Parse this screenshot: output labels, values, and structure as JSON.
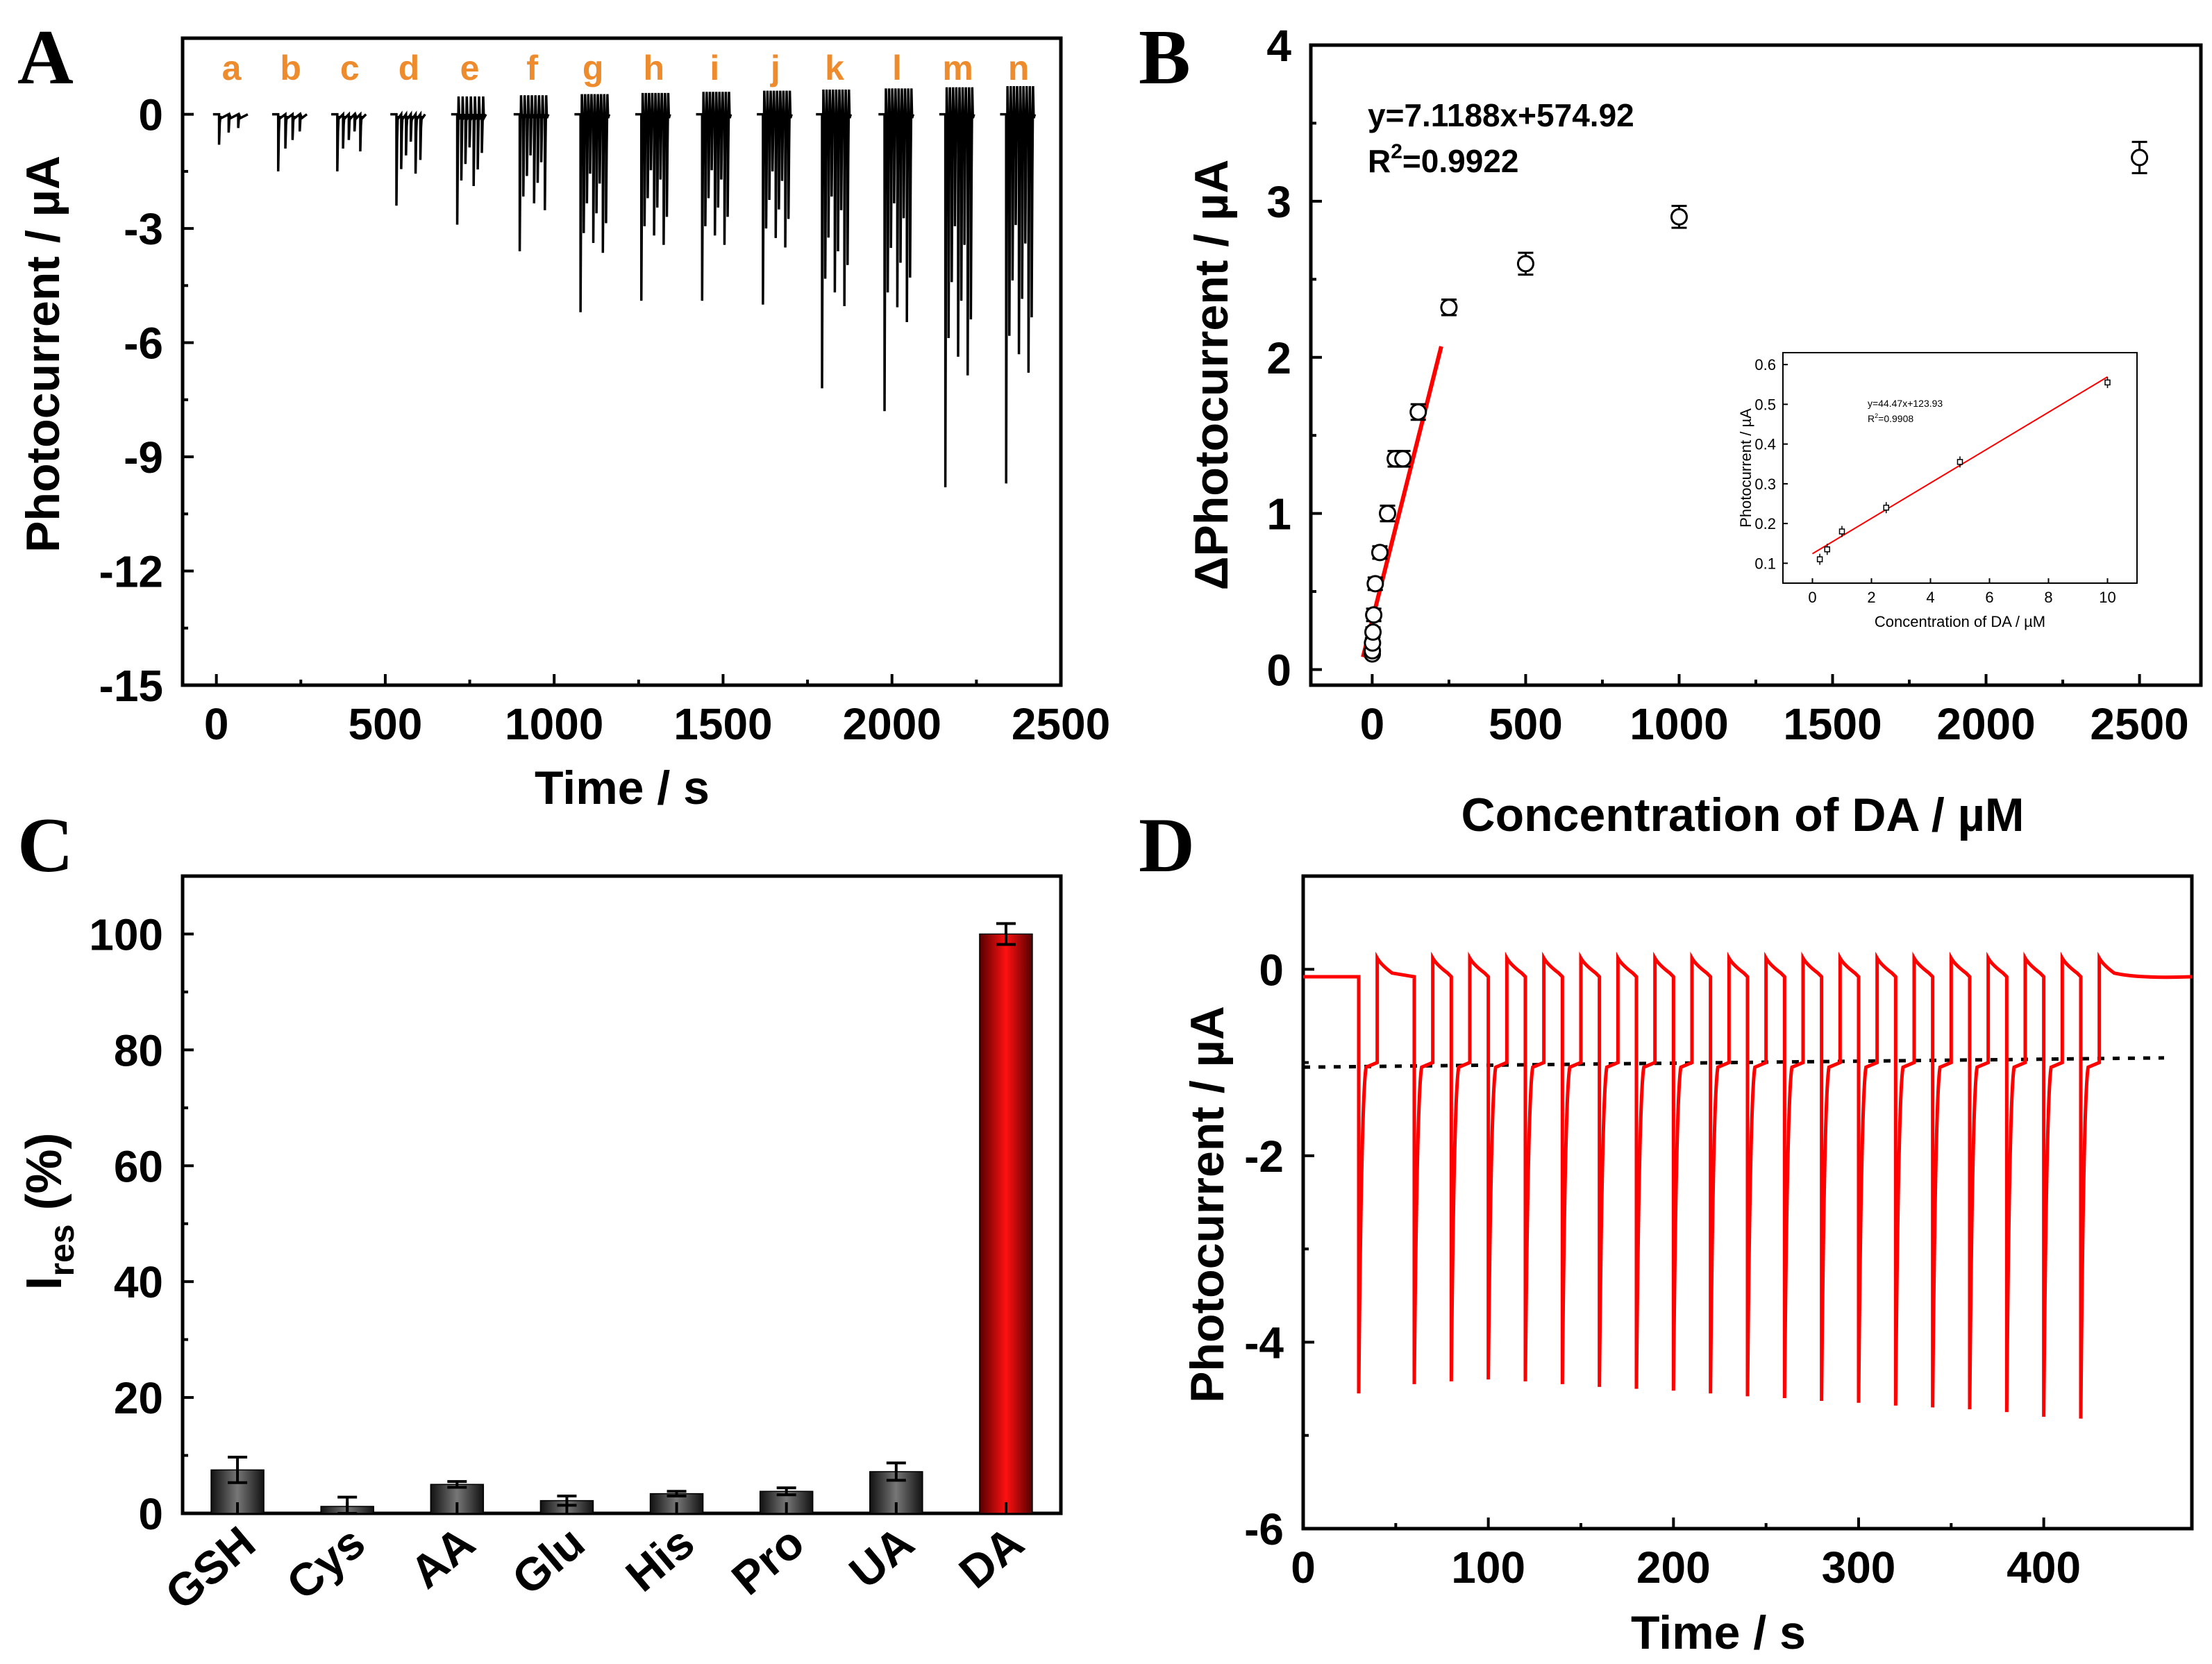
{
  "figure": {
    "panels": [
      "A",
      "B",
      "C",
      "D"
    ]
  },
  "colors": {
    "ink": "#000000",
    "red": "#ff0000",
    "orange": "#ed8b2d",
    "bar_dark": "#3a3a3a",
    "bar_red": "#e00000"
  },
  "chart_data": [
    {
      "id": "A",
      "type": "line",
      "panel_label": "A",
      "title": "",
      "xlabel": "Time / s",
      "ylabel": "Photocurrent / µA",
      "xlim": [
        -100,
        2500
      ],
      "ylim": [
        -15,
        2
      ],
      "xticks": [
        0,
        500,
        1000,
        1500,
        2000,
        2500
      ],
      "yticks": [
        0,
        -3,
        -6,
        -9,
        -12,
        -15
      ],
      "baseline": 0,
      "segment_labels": [
        "a",
        "b",
        "c",
        "d",
        "e",
        "f",
        "g",
        "h",
        "i",
        "j",
        "k",
        "l",
        "m",
        "n"
      ],
      "segment_start_times": [
        0,
        175,
        350,
        525,
        705,
        890,
        1070,
        1250,
        1430,
        1610,
        1785,
        1970,
        2150,
        2330
      ],
      "segment_peaks": [
        -0.8,
        -1.5,
        -1.5,
        -2.4,
        -2.9,
        -3.6,
        -5.2,
        -4.9,
        -4.9,
        -5.0,
        -7.2,
        -7.8,
        -9.8,
        -9.7
      ]
    },
    {
      "id": "B",
      "type": "scatter",
      "panel_label": "B",
      "title": "",
      "xlabel": "Concentration of DA / µM",
      "ylabel": "ΔPhotocurrent / µA",
      "xlim": [
        -200,
        2700
      ],
      "ylim": [
        -0.1,
        4
      ],
      "xticks": [
        0,
        500,
        1000,
        1500,
        2000,
        2500
      ],
      "yticks": [
        0,
        1,
        2,
        3,
        4
      ],
      "x": [
        0.25,
        0.5,
        1,
        2.5,
        5,
        10,
        25,
        50,
        75,
        100,
        150,
        250,
        500,
        1000,
        2500
      ],
      "y": [
        0.1,
        0.12,
        0.17,
        0.24,
        0.35,
        0.55,
        0.75,
        1.0,
        1.35,
        1.35,
        1.65,
        2.32,
        2.6,
        2.9,
        3.28
      ],
      "error": [
        0.02,
        0.02,
        0.03,
        0.03,
        0.04,
        0.04,
        0.04,
        0.05,
        0.05,
        0.05,
        0.05,
        0.05,
        0.07,
        0.07,
        0.1
      ],
      "fit_line": {
        "x_start": -30,
        "x_end": 225,
        "y_start": 0.08,
        "y_end": 2.07
      },
      "equation": "y=7.1188x+574.92",
      "r2_prefix": "R",
      "r2_sup": "2",
      "r2_value": "=0.9922",
      "inset": {
        "xlabel": "Concentration of DA / µM",
        "ylabel": "Photocurrent / µA",
        "xlim": [
          -1,
          11
        ],
        "ylim": [
          0.05,
          0.63
        ],
        "xticks": [
          0,
          2,
          4,
          6,
          8,
          10
        ],
        "yticks": [
          0.1,
          0.2,
          0.3,
          0.4,
          0.5,
          0.6
        ],
        "x": [
          0.25,
          0.5,
          1,
          2.5,
          5,
          10
        ],
        "y": [
          0.11,
          0.135,
          0.18,
          0.24,
          0.355,
          0.555
        ],
        "fit_line": {
          "x_start": 0,
          "x_end": 10,
          "y_start": 0.124,
          "y_end": 0.569
        },
        "equation": "y=44.47x+123.93",
        "r2_prefix": "R",
        "r2_sup": "2",
        "r2_value": "=0.9908"
      }
    },
    {
      "id": "C",
      "type": "bar",
      "panel_label": "C",
      "title": "",
      "xlabel": "",
      "ylabel_main": "I",
      "ylabel_sub": "res",
      "ylabel_tail": " (%)",
      "ylim": [
        0,
        110
      ],
      "yticks": [
        0,
        20,
        40,
        60,
        80,
        100
      ],
      "categories": [
        "GSH",
        "Cys",
        "AA",
        "Glu",
        "His",
        "Pro",
        "UA",
        "DA"
      ],
      "values": [
        7.5,
        1.2,
        5.0,
        2.2,
        3.4,
        3.8,
        7.2,
        100
      ],
      "errors": [
        2.2,
        1.6,
        0.5,
        0.8,
        0.4,
        0.6,
        1.5,
        1.8
      ]
    },
    {
      "id": "D",
      "type": "line",
      "panel_label": "D",
      "title": "",
      "xlabel": "Time / s",
      "ylabel": "Photocurrent / µA",
      "xlim": [
        0,
        480
      ],
      "ylim": [
        -6,
        1
      ],
      "xticks": [
        0,
        100,
        200,
        300,
        400
      ],
      "yticks": [
        0,
        -2,
        -4,
        -6
      ],
      "dark_level": -0.08,
      "steady_level": -1.0,
      "on_times": [
        30,
        60,
        80,
        100,
        120,
        140,
        160,
        180,
        200,
        220,
        240,
        260,
        280,
        300,
        320,
        340,
        360,
        380,
        400,
        420
      ],
      "peak_values": [
        -4.55,
        -4.45,
        -4.42,
        -4.4,
        -4.42,
        -4.45,
        -4.48,
        -4.5,
        -4.52,
        -4.55,
        -4.58,
        -4.6,
        -4.63,
        -4.65,
        -4.68,
        -4.7,
        -4.72,
        -4.75,
        -4.8,
        -4.82
      ],
      "dashed_reference": {
        "x_start": 0,
        "x_end": 465,
        "y_start": -1.05,
        "y_end": -0.95
      }
    }
  ]
}
